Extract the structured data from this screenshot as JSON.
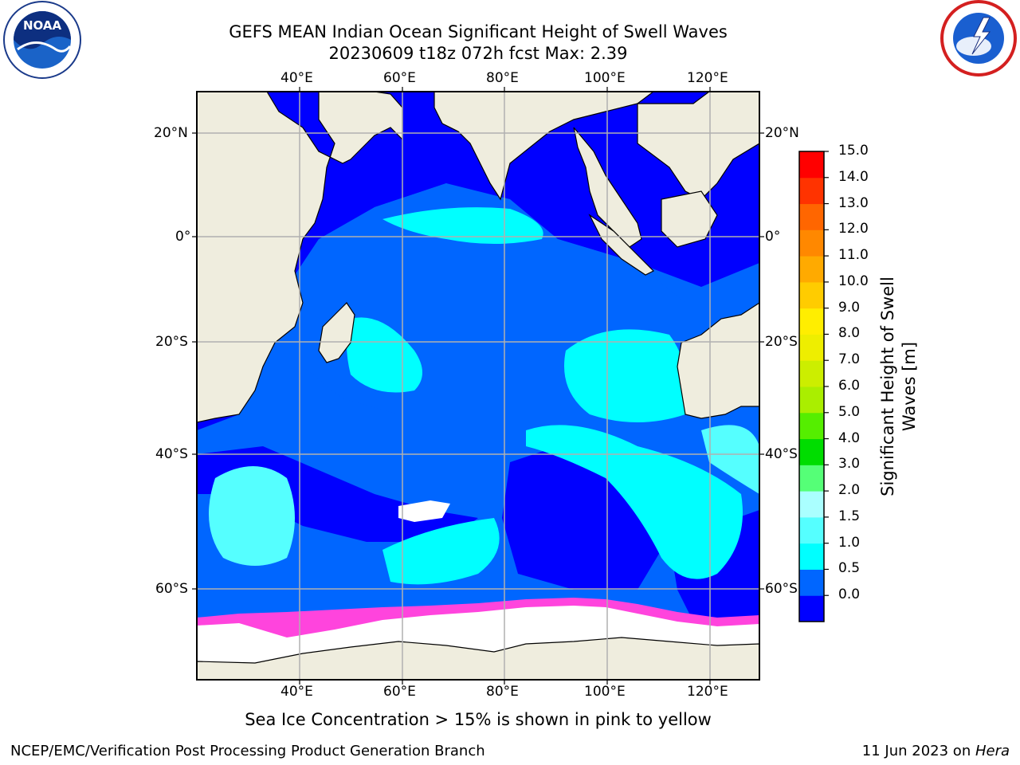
{
  "title_line1": "GEFS MEAN Indian Ocean Significant Height of Swell Waves",
  "title_line2": "20230609 t18z 072h fcst   Max: 2.39",
  "map": {
    "lon_ticks": [
      "40°E",
      "60°E",
      "80°E",
      "100°E",
      "120°E"
    ],
    "lat_ticks": [
      "20°N",
      "0°",
      "20°S",
      "40°S",
      "60°S"
    ],
    "lon_range": [
      20,
      130
    ],
    "lat_range": [
      -72,
      28
    ],
    "colors": {
      "land": "#efedde",
      "ice": "#ffffff",
      "grid": "#b0b0b0"
    }
  },
  "colorbar": {
    "label": "Significant Height of Swell Waves [m]",
    "label_line1": "Significant Height of Swell",
    "label_line2": "Waves [m]",
    "ticks": [
      "15.0",
      "14.0",
      "13.0",
      "12.0",
      "11.0",
      "10.0",
      "9.0",
      "8.0",
      "7.0",
      "6.0",
      "5.0",
      "4.0",
      "3.0",
      "2.0",
      "1.5",
      "1.0",
      "0.5",
      "0.0"
    ],
    "bins": [
      {
        "color": "#0000ff"
      },
      {
        "color": "#0066ff"
      },
      {
        "color": "#00ffff"
      },
      {
        "color": "#55ffff"
      },
      {
        "color": "#aaffff"
      },
      {
        "color": "#55ff77"
      },
      {
        "color": "#00dd00"
      },
      {
        "color": "#55ee00"
      },
      {
        "color": "#aaee00"
      },
      {
        "color": "#ccee00"
      },
      {
        "color": "#eeee00"
      },
      {
        "color": "#ffee00"
      },
      {
        "color": "#ffcc00"
      },
      {
        "color": "#ffaa00"
      },
      {
        "color": "#ff8800"
      },
      {
        "color": "#ff6600"
      },
      {
        "color": "#ff3300"
      },
      {
        "color": "#ff0000"
      }
    ]
  },
  "caption": "Sea Ice Concentration > 15% is shown in pink to yellow",
  "footer_left": "NCEP/EMC/Verification Post Processing Product Generation Branch",
  "footer_right_prefix": "11 Jun 2023 on ",
  "footer_right_em": "Hera",
  "logos": {
    "left": "noaa-logo",
    "right": "nws-logo"
  }
}
